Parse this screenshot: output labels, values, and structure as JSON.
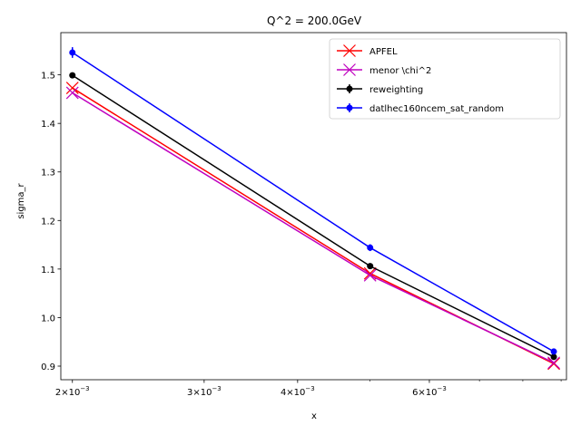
{
  "chart_data": {
    "type": "line",
    "title": "Q^2 = 200.0GeV",
    "xlabel": "x",
    "ylabel": "sigma_r",
    "xscale": "log",
    "xlim": [
      0.00193,
      0.00915
    ],
    "ylim": [
      0.872,
      1.587
    ],
    "grid": false,
    "legend_position": "top-right",
    "x_major_ticks": [
      {
        "value": 0.002,
        "base": "2",
        "exp": "−3"
      },
      {
        "value": 0.003,
        "base": "3",
        "exp": "−3"
      },
      {
        "value": 0.004,
        "base": "4",
        "exp": "−3"
      },
      {
        "value": 0.006,
        "base": "6",
        "exp": "−3"
      }
    ],
    "x_minor_ticks": [
      0.005,
      0.007,
      0.008,
      0.009
    ],
    "y_ticks": [
      {
        "value": 0.9,
        "label": "0.9"
      },
      {
        "value": 1.0,
        "label": "1.0"
      },
      {
        "value": 1.1,
        "label": "1.1"
      },
      {
        "value": 1.2,
        "label": "1.2"
      },
      {
        "value": 1.3,
        "label": "1.3"
      },
      {
        "value": 1.4,
        "label": "1.4"
      },
      {
        "value": 1.5,
        "label": "1.5"
      }
    ],
    "series": [
      {
        "name": "APFEL",
        "color": "#ff0000",
        "marker": "x",
        "x": [
          0.002,
          0.005,
          0.0088
        ],
        "y": [
          1.473,
          1.091,
          0.905
        ]
      },
      {
        "name": "menor \\chi^2",
        "color": "#bf00bf",
        "marker": "x",
        "x": [
          0.002,
          0.005,
          0.0088
        ],
        "y": [
          1.463,
          1.087,
          0.907
        ]
      },
      {
        "name": "reweighting",
        "color": "#000000",
        "marker": "o",
        "x": [
          0.002,
          0.005,
          0.0088
        ],
        "y": [
          1.499,
          1.106,
          0.919
        ],
        "err": [
          0.004,
          0.004,
          0.004
        ]
      },
      {
        "name": "datlhec160ncem_sat_random",
        "color": "#0000ff",
        "marker": "o",
        "x": [
          0.002,
          0.005,
          0.0088
        ],
        "y": [
          1.546,
          1.144,
          0.93
        ],
        "err": [
          0.011,
          0.007,
          0.005
        ]
      }
    ]
  }
}
